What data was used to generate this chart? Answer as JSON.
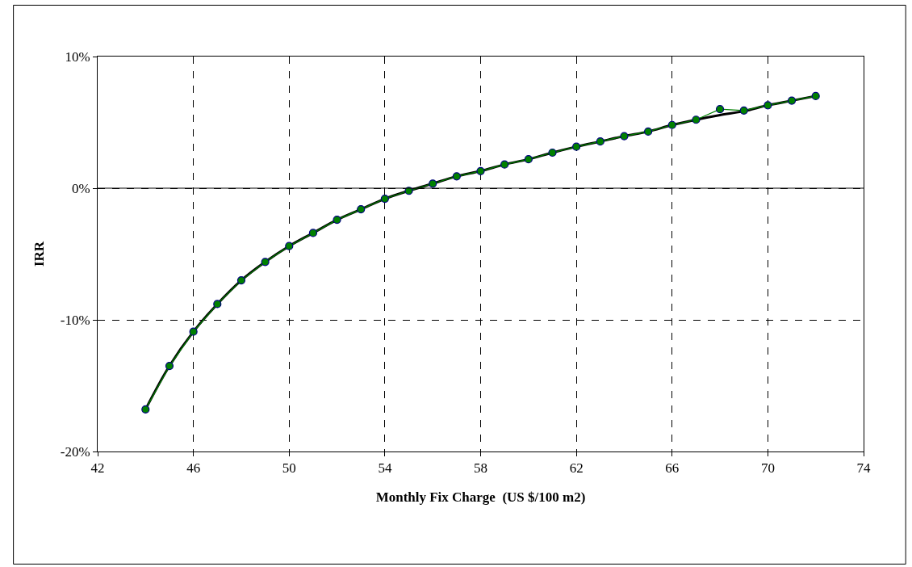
{
  "chart_data": {
    "type": "line",
    "xlabel": "Monthly Fix Charge  (US $/100 m2)",
    "ylabel": "IRR",
    "x": [
      44,
      45,
      46,
      47,
      48,
      49,
      50,
      51,
      52,
      53,
      54,
      55,
      56,
      57,
      58,
      59,
      60,
      61,
      62,
      63,
      64,
      65,
      66,
      67,
      68,
      69,
      70,
      71,
      72
    ],
    "series": [
      {
        "color": "#008000",
        "marker": "circle",
        "values": [
          -16.8,
          -13.5,
          -10.9,
          -8.8,
          -7.0,
          -5.6,
          -4.4,
          -3.4,
          -2.4,
          -1.6,
          -0.8,
          -0.2,
          0.35,
          0.9,
          1.3,
          1.8,
          2.2,
          2.7,
          3.15,
          3.55,
          3.95,
          4.3,
          4.8,
          5.2,
          6.0,
          5.9,
          6.3,
          6.65,
          7.0
        ]
      },
      {
        "color": "#000000",
        "marker": "none",
        "values": [
          -16.8,
          -13.5,
          -10.9,
          -8.8,
          -7.0,
          -5.6,
          -4.4,
          -3.4,
          -2.4,
          -1.6,
          -0.8,
          -0.2,
          0.35,
          0.9,
          1.3,
          1.8,
          2.2,
          2.7,
          3.15,
          3.55,
          3.95,
          4.3,
          4.8,
          5.2,
          5.55,
          5.85,
          6.3,
          6.65,
          7.0
        ]
      }
    ],
    "xlim": [
      42,
      74
    ],
    "xticks": [
      42,
      46,
      50,
      54,
      58,
      62,
      66,
      70,
      74
    ],
    "ylim": [
      -20,
      10
    ],
    "yticks": [
      {
        "value": -20,
        "label": "-20%"
      },
      {
        "value": -10,
        "label": "-10%"
      },
      {
        "value": 0,
        "label": "0%"
      },
      {
        "value": 10,
        "label": "10%"
      }
    ],
    "grid": true,
    "line_style": "solid",
    "ref_lines": [
      {
        "axis": "y",
        "value": 0,
        "color": "#000000",
        "line_style": "solid"
      }
    ]
  }
}
